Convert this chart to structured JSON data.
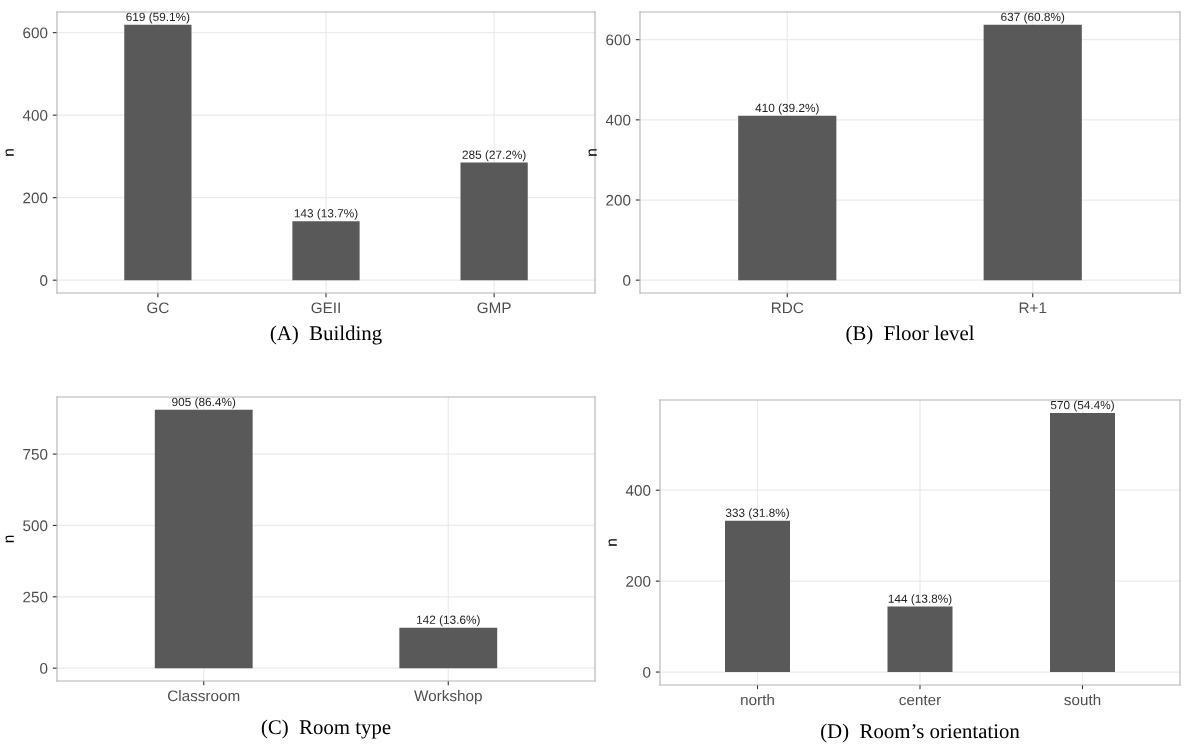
{
  "chart_data": [
    {
      "type": "bar",
      "title": "(A)  Building",
      "ylabel": "n",
      "categories": [
        "GC",
        "GEII",
        "GMP"
      ],
      "values": [
        619,
        143,
        285
      ],
      "value_labels": [
        "619 (59.1%)",
        "143 (13.7%)",
        "285 (27.2%)"
      ],
      "color": "#595959",
      "ylim": [
        -31,
        650
      ],
      "yticks": [
        0,
        200,
        400,
        600
      ],
      "grid": true
    },
    {
      "type": "bar",
      "title": "(B)  Floor level",
      "ylabel": "n",
      "categories": [
        "RDC",
        "R+1"
      ],
      "values": [
        410,
        637
      ],
      "value_labels": [
        "410 (39.2%)",
        "637 (60.8%)"
      ],
      "color": "#595959",
      "ylim": [
        -32,
        669
      ],
      "yticks": [
        0,
        200,
        400,
        600
      ],
      "grid": true
    },
    {
      "type": "bar",
      "title": "(C)  Room type",
      "ylabel": "n",
      "categories": [
        "Classroom",
        "Workshop"
      ],
      "values": [
        905,
        142
      ],
      "value_labels": [
        "905 (86.4%)",
        "142 (13.6%)"
      ],
      "color": "#595959",
      "ylim": [
        -45,
        950
      ],
      "yticks": [
        0,
        250,
        500,
        750
      ],
      "grid": true
    },
    {
      "type": "bar",
      "title": "(D)  Room’s orientation",
      "ylabel": "n",
      "categories": [
        "north",
        "center",
        "south"
      ],
      "values": [
        333,
        144,
        570
      ],
      "value_labels": [
        "333 (31.8%)",
        "144 (13.8%)",
        "570 (54.4%)"
      ],
      "color": "#595959",
      "ylim": [
        -28.5,
        598.5
      ],
      "yticks": [
        0,
        200,
        400
      ],
      "grid": true
    }
  ]
}
